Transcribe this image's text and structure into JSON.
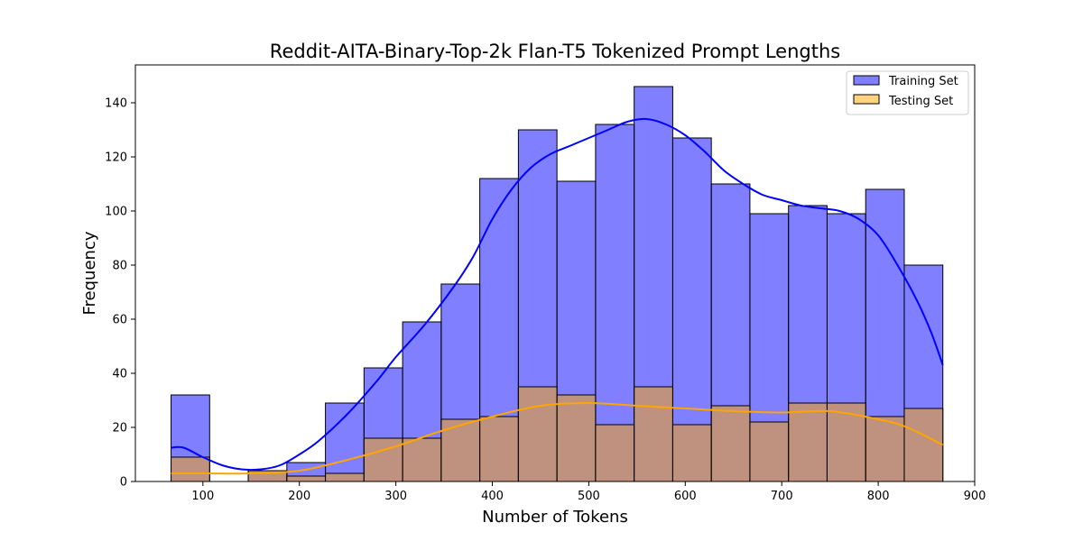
{
  "chart_data": {
    "type": "bar",
    "title": "Reddit-AITA-Binary-Top-2k Flan-T5 Tokenized Prompt Lengths",
    "xlabel": "Number of Tokens",
    "ylabel": "Frequency",
    "xlim": [
      30,
      900
    ],
    "ylim": [
      0,
      154
    ],
    "xticks": [
      100,
      200,
      300,
      400,
      500,
      600,
      700,
      800,
      900
    ],
    "yticks": [
      0,
      20,
      40,
      60,
      80,
      100,
      120,
      140
    ],
    "grid": false,
    "legend_position": "top-right",
    "bin_edges": [
      67,
      107,
      147,
      187,
      227,
      267,
      307,
      347,
      387,
      427,
      467,
      507,
      547,
      587,
      627,
      667,
      707,
      747,
      787,
      827,
      867
    ],
    "series": [
      {
        "name": "Training Set",
        "color": "#0000ff",
        "values": [
          32,
          0,
          4,
          7,
          29,
          42,
          59,
          73,
          112,
          130,
          111,
          132,
          146,
          127,
          110,
          99,
          102,
          99,
          108,
          80
        ],
        "kde_x": [
          67,
          80,
          100,
          120,
          140,
          160,
          180,
          200,
          220,
          250,
          280,
          300,
          330,
          360,
          380,
          400,
          420,
          440,
          460,
          480,
          500,
          520,
          540,
          560,
          580,
          600,
          620,
          640,
          660,
          680,
          700,
          720,
          740,
          760,
          780,
          800,
          820,
          840,
          855,
          867
        ],
        "kde_y": [
          12.5,
          12.5,
          9,
          6,
          4.5,
          4.5,
          6,
          10,
          15,
          25,
          37,
          46,
          58,
          72,
          83,
          97,
          108,
          116,
          121,
          124,
          127,
          130,
          133,
          134,
          132,
          128,
          122,
          115,
          110,
          106,
          104,
          102,
          101,
          100,
          97,
          91,
          80,
          67,
          55,
          43
        ]
      },
      {
        "name": "Testing Set",
        "color": "#ffa500",
        "values": [
          9,
          0,
          4,
          2,
          3,
          16,
          16,
          23,
          24,
          35,
          32,
          21,
          35,
          21,
          28,
          22,
          29,
          29,
          24,
          27
        ],
        "kde_x": [
          67,
          100,
          150,
          200,
          250,
          300,
          350,
          400,
          450,
          500,
          550,
          600,
          650,
          700,
          750,
          800,
          830,
          867
        ],
        "kde_y": [
          3,
          3,
          3,
          4,
          8,
          13,
          19,
          24,
          28,
          29,
          28,
          27,
          26,
          25.5,
          26,
          23,
          20,
          13.5
        ]
      }
    ]
  }
}
